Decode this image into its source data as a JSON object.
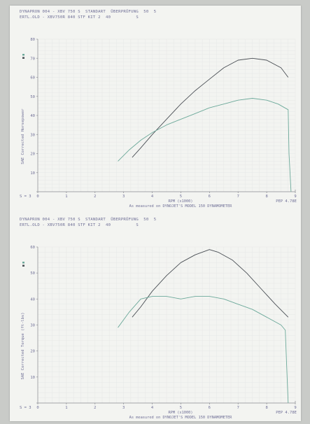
{
  "charts": [
    {
      "header_line1": "DYNAPRON 004 - XBV 750 S  STANDART  ÜBERPRÜFUNG  50  5",
      "header_line2": "ERTL.OLD - XBV750R 840 STF KIT 2  40          S",
      "corner_label": "S = 3",
      "pep_label": "PEP 4.78E",
      "footer": "As measured on DYNOJET'S MODEL 150 DYNAMOMETER"
    },
    {
      "header_line1": "DYNAPRON 004 - XBV 750 S  STANDART  ÜBERPRÜFUNG  50  5",
      "header_line2": "ERTL.OLD - XBV750R 840 STF KIT 2  40          S",
      "corner_label": "S = 3",
      "pep_label": "PEP 4.78E",
      "footer": "As measured on DYNOJET'S MODEL 150 DYNAMOMETER"
    }
  ],
  "chart_data": [
    {
      "type": "line",
      "xlabel": "RPM (x1000)",
      "ylabel": "SAE Corrected Horsepower",
      "xlim": [
        0,
        9
      ],
      "ylim": [
        0,
        80
      ],
      "x_ticks": [
        "0",
        "1",
        "2",
        "3",
        "4",
        "5",
        "6",
        "7",
        "8",
        "9"
      ],
      "y_ticks": [
        "0",
        "10",
        "20",
        "30",
        "40",
        "50",
        "60",
        "70",
        "80"
      ],
      "grid": true,
      "series": [
        {
          "color": "#4a4f55",
          "x": [
            3.3,
            3.6,
            4.0,
            4.5,
            5.0,
            5.5,
            6.0,
            6.5,
            7.0,
            7.5,
            8.0,
            8.5,
            8.75
          ],
          "y": [
            18,
            23,
            30,
            38,
            46,
            53,
            59,
            65,
            69,
            70,
            69,
            65,
            60
          ]
        },
        {
          "color": "#6ca99a",
          "x": [
            2.8,
            3.2,
            3.6,
            4.0,
            4.5,
            5.0,
            5.5,
            6.0,
            6.5,
            7.0,
            7.5,
            8.0,
            8.4,
            8.75,
            8.78,
            8.85
          ],
          "y": [
            16,
            22,
            27,
            31,
            35,
            38,
            41,
            44,
            46,
            48,
            49,
            48,
            46,
            43,
            20,
            0
          ]
        }
      ]
    },
    {
      "type": "line",
      "xlabel": "RPM (x1000)",
      "ylabel": "SAE Corrected Torque (ft-lbs)",
      "xlim": [
        0,
        9
      ],
      "ylim": [
        0,
        60
      ],
      "x_ticks": [
        "0",
        "1",
        "2",
        "3",
        "4",
        "5",
        "6",
        "7",
        "8",
        "9"
      ],
      "y_ticks": [
        "0",
        "10",
        "20",
        "30",
        "40",
        "50",
        "60"
      ],
      "grid": true,
      "series": [
        {
          "color": "#4a4f55",
          "x": [
            3.3,
            3.6,
            4.0,
            4.5,
            5.0,
            5.5,
            6.0,
            6.3,
            6.8,
            7.3,
            7.8,
            8.3,
            8.75
          ],
          "y": [
            33,
            37,
            43,
            49,
            54,
            57,
            59,
            58,
            55,
            50,
            44,
            38,
            33
          ]
        },
        {
          "color": "#6ca99a",
          "x": [
            2.8,
            3.2,
            3.6,
            4.0,
            4.5,
            5.0,
            5.5,
            6.0,
            6.5,
            7.0,
            7.5,
            8.0,
            8.5,
            8.65,
            8.7,
            8.75
          ],
          "y": [
            29,
            35,
            40,
            41,
            41,
            40,
            41,
            41,
            40,
            38,
            36,
            33,
            30,
            28,
            14,
            0
          ]
        }
      ]
    }
  ]
}
